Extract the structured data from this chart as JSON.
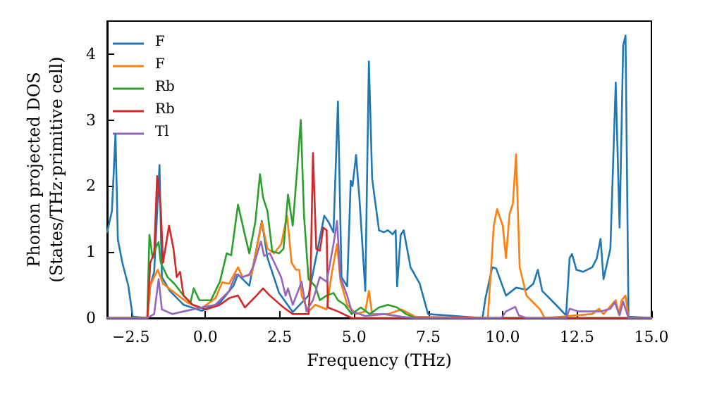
{
  "chart_data": {
    "type": "line",
    "xlabel": "Frequency (THz)",
    "ylabel": "Phonon projected DOS\n(States/THz·primitive cell)",
    "xlim": [
      -3.3,
      15
    ],
    "ylim": [
      0,
      4.5
    ],
    "xticks": [
      {
        "value": -2.5,
        "label": "−2.5"
      },
      {
        "value": 0,
        "label": "0.0"
      },
      {
        "value": 2.5,
        "label": "2.5"
      },
      {
        "value": 5,
        "label": "5.0"
      },
      {
        "value": 7.5,
        "label": "7.5"
      },
      {
        "value": 10,
        "label": "10.0"
      },
      {
        "value": 12.5,
        "label": "12.5"
      },
      {
        "value": 15,
        "label": "15.0"
      }
    ],
    "yticks": [
      0,
      1,
      2,
      3,
      4
    ],
    "grid": false,
    "legend": "top left",
    "marker": "none",
    "line_style": "solid",
    "series": [
      {
        "name": "F",
        "color": "#1f77b4",
        "x": [
          -3.3,
          -3.14,
          -3.02,
          -2.94,
          -2.79,
          -2.59,
          -2.44,
          -1.95,
          -1.85,
          -1.72,
          -1.54,
          -1.46,
          -1.19,
          -0.73,
          -0.12,
          0.49,
          0.95,
          1.1,
          1.48,
          1.9,
          2.09,
          2.48,
          2.94,
          3.47,
          4.0,
          4.15,
          4.31,
          4.46,
          4.58,
          4.77,
          4.89,
          4.95,
          5.07,
          5.19,
          5.38,
          5.5,
          5.61,
          5.84,
          6.0,
          6.14,
          6.3,
          6.4,
          6.45,
          6.57,
          6.67,
          6.9,
          7.21,
          7.49,
          9.32,
          9.42,
          9.65,
          9.78,
          10.11,
          10.45,
          10.8,
          11.03,
          11.18,
          11.33,
          11.79,
          12.13,
          12.25,
          12.33,
          12.48,
          12.7,
          13.01,
          13.16,
          13.29,
          13.39,
          13.62,
          13.8,
          13.93,
          14.05,
          14.13,
          14.23,
          15.0
        ],
        "values": [
          1.3,
          1.62,
          2.79,
          1.19,
          0.84,
          0.49,
          0.02,
          0,
          0.49,
          0.7,
          2.32,
          0.62,
          0.41,
          0.2,
          0.11,
          0.23,
          0.49,
          0.66,
          0.49,
          1.47,
          0.91,
          0.38,
          0.09,
          0.34,
          1.55,
          1.45,
          1.3,
          3.28,
          0.62,
          0.48,
          2.08,
          2.0,
          2.47,
          1.76,
          0.41,
          3.89,
          2.11,
          1.33,
          1.3,
          1.33,
          1.27,
          1.33,
          0.48,
          1.26,
          1.33,
          0.77,
          0.52,
          0.06,
          0,
          0.3,
          0.77,
          0.75,
          0.34,
          0.46,
          0.43,
          0.52,
          0.73,
          0.41,
          0.2,
          0.04,
          0.91,
          0.97,
          0.73,
          0.7,
          0.77,
          0.9,
          1.2,
          0.59,
          1.05,
          3.57,
          1.37,
          4.13,
          4.28,
          0.02,
          0
        ]
      },
      {
        "name": "F",
        "color": "#ff7f0e",
        "x": [
          -3.3,
          -1.95,
          -1.85,
          -1.72,
          -1.6,
          -1.42,
          -1.11,
          -0.58,
          -0.12,
          0.34,
          0.57,
          0.8,
          1.1,
          1.25,
          1.56,
          1.9,
          2.09,
          2.32,
          2.55,
          2.75,
          2.9,
          3.05,
          3.16,
          3.24,
          3.47,
          3.7,
          4.08,
          4.23,
          4.43,
          4.54,
          4.77,
          5.07,
          5.38,
          5.5,
          5.61,
          6.14,
          6.6,
          7.06,
          9.5,
          9.7,
          9.81,
          10.0,
          10.11,
          10.23,
          10.34,
          10.45,
          10.57,
          10.8,
          11.1,
          11.26,
          11.41,
          13.01,
          13.24,
          13.39,
          13.8,
          13.9,
          14.0,
          14.13,
          14.23,
          15.0
        ],
        "values": [
          0,
          0,
          0.49,
          0.62,
          0.73,
          0.52,
          0.41,
          0.23,
          0.15,
          0.3,
          0.54,
          0.52,
          0.77,
          0.62,
          0.66,
          1.45,
          1.05,
          0.98,
          1.12,
          1.55,
          0.84,
          0.73,
          0.73,
          0.34,
          0.1,
          0.2,
          0.13,
          0.62,
          1.12,
          0.57,
          0.2,
          0.06,
          0.1,
          0.41,
          0.06,
          0.06,
          0.13,
          0.02,
          0,
          1.4,
          1.65,
          1.4,
          0.91,
          1.58,
          1.73,
          2.48,
          0.77,
          0.34,
          0.2,
          0.13,
          0,
          0.06,
          0.14,
          0.06,
          0.27,
          0.06,
          0.27,
          0.34,
          0,
          0
        ]
      },
      {
        "name": "Rb",
        "color": "#2ca02c",
        "x": [
          -3.3,
          -1.95,
          -1.88,
          -1.77,
          -1.65,
          -1.57,
          -1.5,
          -1.27,
          -1.04,
          -0.73,
          -0.5,
          -0.39,
          -0.2,
          0.19,
          0.49,
          0.72,
          0.87,
          1.1,
          1.33,
          1.48,
          1.68,
          1.84,
          1.94,
          2.09,
          2.25,
          2.48,
          2.63,
          2.78,
          2.94,
          3.09,
          3.21,
          3.32,
          3.47,
          3.7,
          3.85,
          4.08,
          4.31,
          4.46,
          4.69,
          4.92,
          5.23,
          5.53,
          5.84,
          6.14,
          6.45,
          6.75,
          7.06,
          15.0
        ],
        "values": [
          0,
          0,
          1.26,
          0.91,
          1.08,
          1.15,
          0.84,
          0.62,
          0.52,
          0.34,
          0.23,
          0.45,
          0.27,
          0.27,
          0.55,
          0.98,
          0.95,
          1.72,
          1.26,
          0.98,
          1.45,
          2.18,
          1.83,
          1.62,
          1.01,
          0.98,
          1.05,
          1.87,
          1.4,
          2.26,
          3.0,
          1.55,
          0.59,
          0.48,
          0.27,
          0.34,
          0.38,
          0.27,
          0.2,
          0.06,
          0.16,
          0.06,
          0.16,
          0.2,
          0.16,
          0.06,
          0,
          0
        ]
      },
      {
        "name": "Rb",
        "color": "#d62728",
        "x": [
          -3.3,
          -1.95,
          -1.85,
          -1.72,
          -1.62,
          -1.5,
          -1.42,
          -1.22,
          -1.07,
          -0.96,
          -0.85,
          -0.73,
          -0.43,
          0.03,
          0.49,
          0.8,
          1.1,
          1.33,
          1.72,
          1.94,
          2.17,
          2.63,
          2.94,
          3.24,
          3.47,
          3.54,
          3.62,
          3.73,
          3.85,
          3.97,
          4.08,
          4.12,
          4.46,
          4.92,
          15.0
        ],
        "values": [
          0,
          0,
          0.84,
          0.98,
          2.15,
          1.69,
          0.84,
          1.4,
          1.05,
          0.62,
          0.7,
          0.34,
          0.2,
          0.13,
          0.2,
          0.3,
          0.34,
          0.16,
          0.34,
          0.45,
          0.34,
          0.16,
          0.06,
          0.06,
          0.06,
          0.62,
          2.5,
          1.05,
          1.02,
          1.37,
          1.33,
          0.16,
          0.1,
          0,
          0
        ]
      },
      {
        "name": "Tl",
        "color": "#9467bd",
        "x": [
          -3.3,
          -1.95,
          -1.72,
          -1.57,
          -1.46,
          -1.11,
          -0.73,
          -0.12,
          0.34,
          0.8,
          1.03,
          1.25,
          1.48,
          1.63,
          1.87,
          1.98,
          2.17,
          2.32,
          2.55,
          2.7,
          2.78,
          2.94,
          3.24,
          3.4,
          3.62,
          3.85,
          4.08,
          4.31,
          4.43,
          4.54,
          4.77,
          4.92,
          5.38,
          6.0,
          6.6,
          7.0,
          9.96,
          10.11,
          10.42,
          10.54,
          10.8,
          12.13,
          12.25,
          12.55,
          13.31,
          13.62,
          13.77,
          13.93,
          14.05,
          14.23,
          15.0
        ],
        "values": [
          0,
          0,
          0.06,
          0.59,
          0.13,
          0.06,
          0.1,
          0.16,
          0.2,
          0.41,
          0.66,
          0.62,
          0.66,
          0.8,
          1.16,
          0.94,
          0.98,
          0.84,
          0.62,
          0.34,
          0.45,
          0.2,
          0.55,
          0.1,
          0.27,
          0.62,
          0.55,
          1.12,
          1.47,
          0.62,
          0.34,
          0.1,
          0.03,
          0.06,
          0.02,
          0,
          0,
          0.1,
          0.17,
          0.04,
          0,
          0,
          0.14,
          0.1,
          0.1,
          0.14,
          0.24,
          0.04,
          0.25,
          0,
          0
        ]
      }
    ]
  }
}
